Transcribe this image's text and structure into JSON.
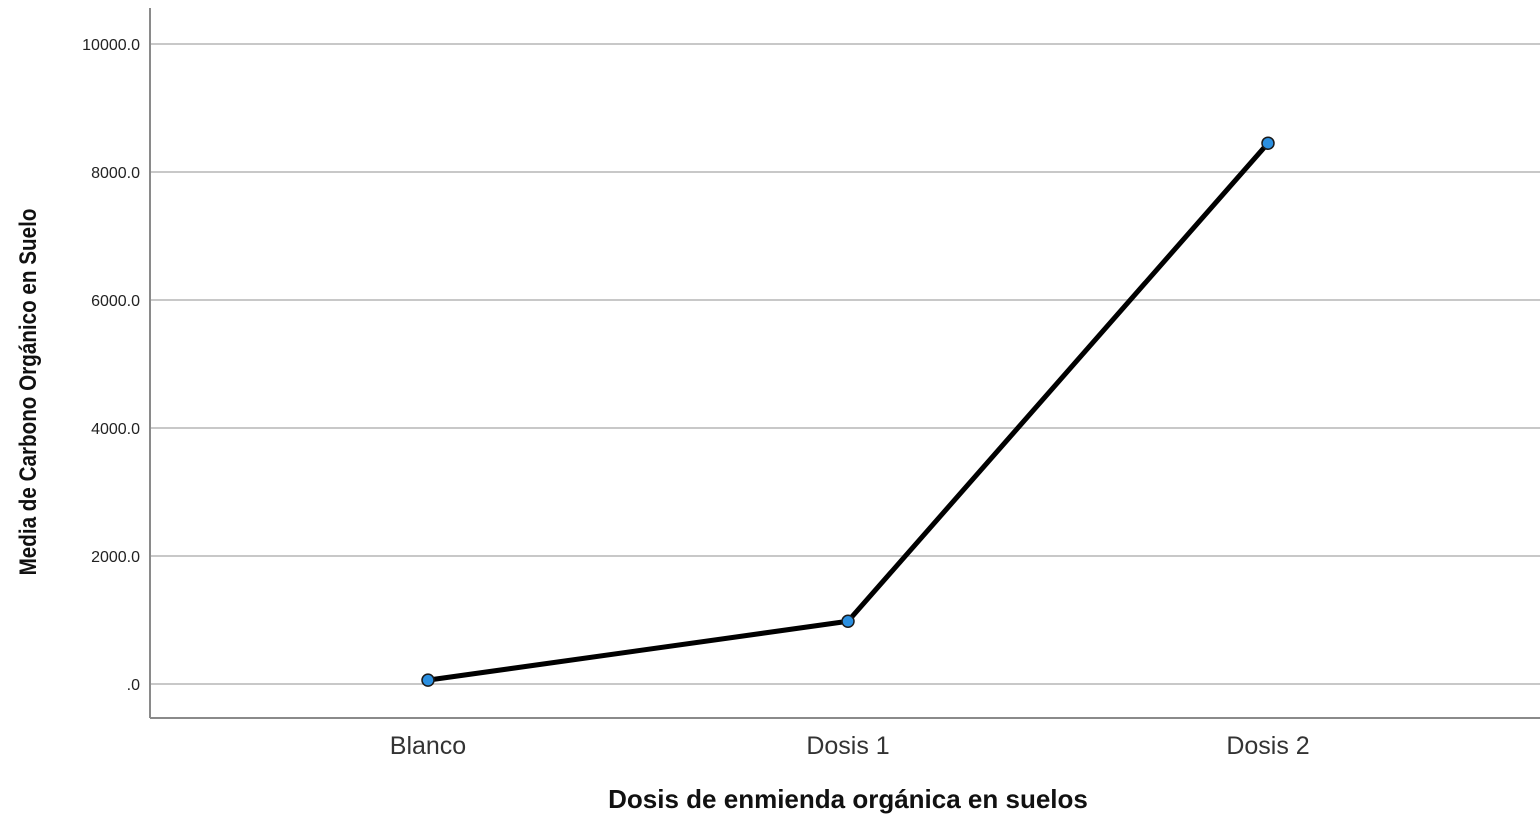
{
  "chart_data": {
    "type": "line",
    "title": "",
    "xlabel": "Dosis de enmienda orgánica en suelos",
    "ylabel": "Media de Carbono Orgánico en Suelo",
    "categories": [
      "Blanco",
      "Dosis 1",
      "Dosis 2"
    ],
    "series": [
      {
        "values": [
          60,
          980,
          8450
        ]
      }
    ],
    "ylim": [
      -500,
      10500
    ],
    "yticks": [
      0,
      2000,
      4000,
      6000,
      8000,
      10000
    ],
    "ytick_labels": [
      ".0",
      "2000.0",
      "4000.0",
      "6000.0",
      "8000.0",
      "10000.0"
    ],
    "grid": true,
    "legend": "none",
    "colors": {
      "line": "#000000",
      "marker": "#2b8fe0",
      "grid": "#c8c8c8",
      "axis": "#8a8a8a"
    }
  }
}
